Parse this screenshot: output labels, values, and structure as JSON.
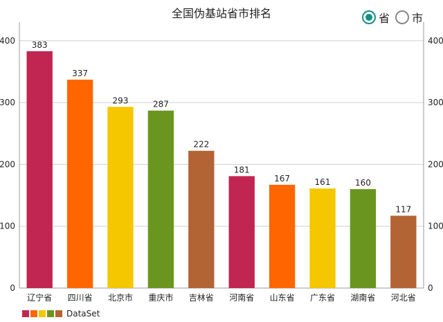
{
  "header": {
    "title": "全国伪基站省市排名"
  },
  "toggle": {
    "options": [
      {
        "label": "省",
        "selected": true
      },
      {
        "label": "市",
        "selected": false
      }
    ],
    "accent_color": "#129080"
  },
  "chart_data": {
    "type": "bar",
    "title": "全国伪基站省市排名",
    "categories": [
      "辽宁省",
      "四川省",
      "北京市",
      "重庆市",
      "吉林省",
      "河南省",
      "山东省",
      "广东省",
      "湖南省",
      "河北省"
    ],
    "series": [
      {
        "name": "DataSet",
        "values": [
          383,
          337,
          293,
          287,
          222,
          181,
          167,
          161,
          160,
          117
        ]
      }
    ],
    "colors": [
      "#C12552",
      "#FF6600",
      "#F5C700",
      "#6A961F",
      "#B36435"
    ],
    "ylim": [
      0,
      430
    ],
    "yticks": [
      0,
      100,
      200,
      300,
      400
    ],
    "grid": true,
    "show_values": true,
    "dual_y_axis": true,
    "legend_position": "bottom-left"
  }
}
